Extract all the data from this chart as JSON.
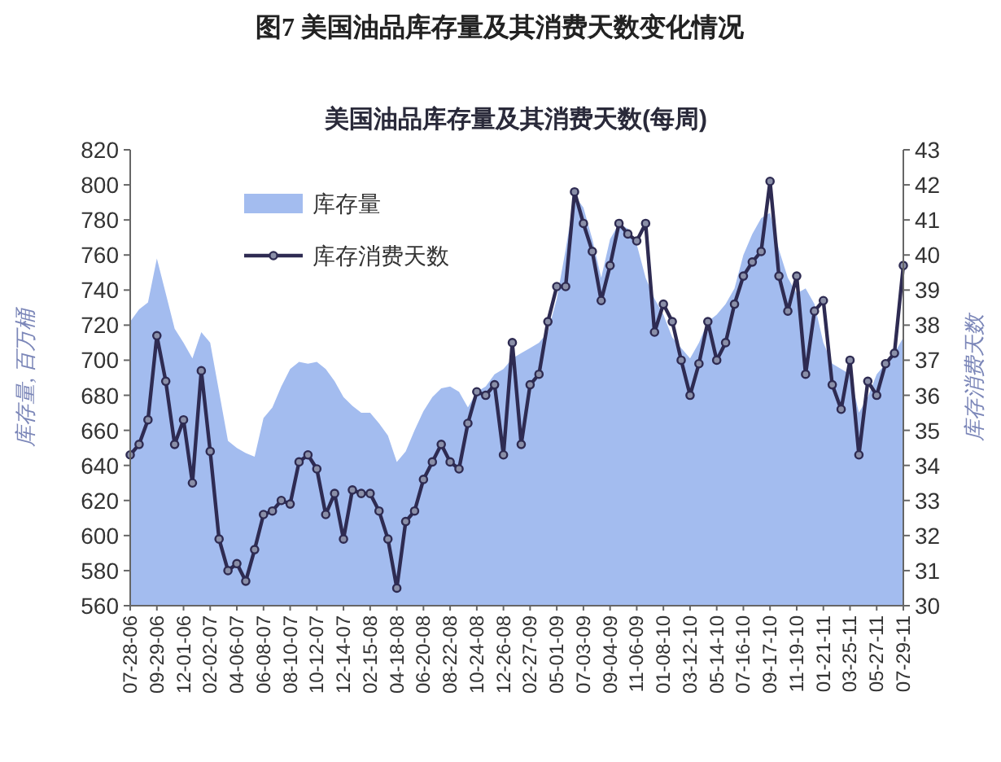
{
  "chart_data": {
    "type": "area",
    "title": "图7  美国油品库存量及其消费天数变化情况",
    "subtitle": "美国油品库存量及其消费天数(每周)",
    "ylabel": "库存量, 百万桶",
    "y2label": "库存消费天数",
    "categories": [
      "07-28-06",
      null,
      null,
      "09-29-06",
      null,
      null,
      "12-01-06",
      null,
      null,
      "02-02-07",
      null,
      null,
      "04-06-07",
      null,
      null,
      "06-08-07",
      null,
      null,
      "08-10-07",
      null,
      null,
      "10-12-07",
      null,
      null,
      "12-14-07",
      null,
      null,
      "02-15-08",
      null,
      null,
      "04-18-08",
      null,
      null,
      "06-20-08",
      null,
      null,
      "08-22-08",
      null,
      null,
      "10-24-08",
      null,
      null,
      "12-26-08",
      null,
      null,
      "02-27-09",
      null,
      null,
      "05-01-09",
      null,
      null,
      "07-03-09",
      null,
      null,
      "09-04-09",
      null,
      null,
      "11-06-09",
      null,
      null,
      "01-08-10",
      null,
      null,
      "03-12-10",
      null,
      null,
      "05-14-10",
      null,
      null,
      "07-16-10",
      null,
      null,
      "09-17-10",
      null,
      null,
      "11-19-10",
      null,
      null,
      "01-21-11",
      null,
      null,
      "03-25-11",
      null,
      null,
      "05-27-11",
      null,
      null,
      "07-29-11"
    ],
    "ylim": [
      560,
      820
    ],
    "yticks": [
      560,
      580,
      600,
      620,
      640,
      660,
      680,
      700,
      720,
      740,
      760,
      780,
      800,
      820
    ],
    "y2lim": [
      30,
      43
    ],
    "y2ticks": [
      30,
      31,
      32,
      33,
      34,
      35,
      36,
      37,
      38,
      39,
      40,
      41,
      42,
      43
    ],
    "legend": "top left",
    "series": [
      {
        "name": "库存量",
        "color": "#a3bcef",
        "values": [
          722,
          729,
          733,
          758,
          738,
          718,
          710,
          701,
          716,
          710,
          682,
          654,
          650,
          647,
          645,
          667,
          673,
          685,
          695,
          699,
          698,
          699,
          695,
          688,
          679,
          674,
          670,
          670,
          664,
          657,
          642,
          648,
          660,
          671,
          679,
          684,
          685,
          682,
          673,
          682,
          685,
          692,
          695,
          701,
          704,
          707,
          710,
          716,
          735,
          763,
          794,
          787,
          769,
          747,
          769,
          778,
          775,
          766,
          747,
          735,
          726,
          713,
          707,
          701,
          710,
          722,
          726,
          732,
          741,
          760,
          772,
          781,
          784,
          763,
          747,
          738,
          741,
          732,
          710,
          698,
          695,
          692,
          670,
          679,
          692,
          698,
          704,
          713
        ]
      },
      {
        "name": "库存消费天数",
        "type": "line",
        "marker": "circle",
        "axis": "y2",
        "color": "#2e2b52",
        "values": [
          34.3,
          34.6,
          35.3,
          37.7,
          36.4,
          34.6,
          35.3,
          33.5,
          36.7,
          34.4,
          31.9,
          31.0,
          31.2,
          30.7,
          31.6,
          32.6,
          32.7,
          33.0,
          32.9,
          34.1,
          34.3,
          33.9,
          32.6,
          33.2,
          31.9,
          33.3,
          33.2,
          33.2,
          32.7,
          31.9,
          30.5,
          32.4,
          32.7,
          33.6,
          34.1,
          34.6,
          34.1,
          33.9,
          35.2,
          36.1,
          36.0,
          36.3,
          34.3,
          37.5,
          34.6,
          36.3,
          36.6,
          38.1,
          39.1,
          39.1,
          41.8,
          40.9,
          40.1,
          38.7,
          39.7,
          40.9,
          40.6,
          40.4,
          40.9,
          37.8,
          38.6,
          38.1,
          37.0,
          36.0,
          36.9,
          38.1,
          37.0,
          37.5,
          38.6,
          39.4,
          39.8,
          40.1,
          42.1,
          39.4,
          38.4,
          39.4,
          36.6,
          38.4,
          38.7,
          36.3,
          35.6,
          37.0,
          34.3,
          36.4,
          36.0,
          36.9,
          37.2,
          39.7
        ]
      }
    ]
  }
}
